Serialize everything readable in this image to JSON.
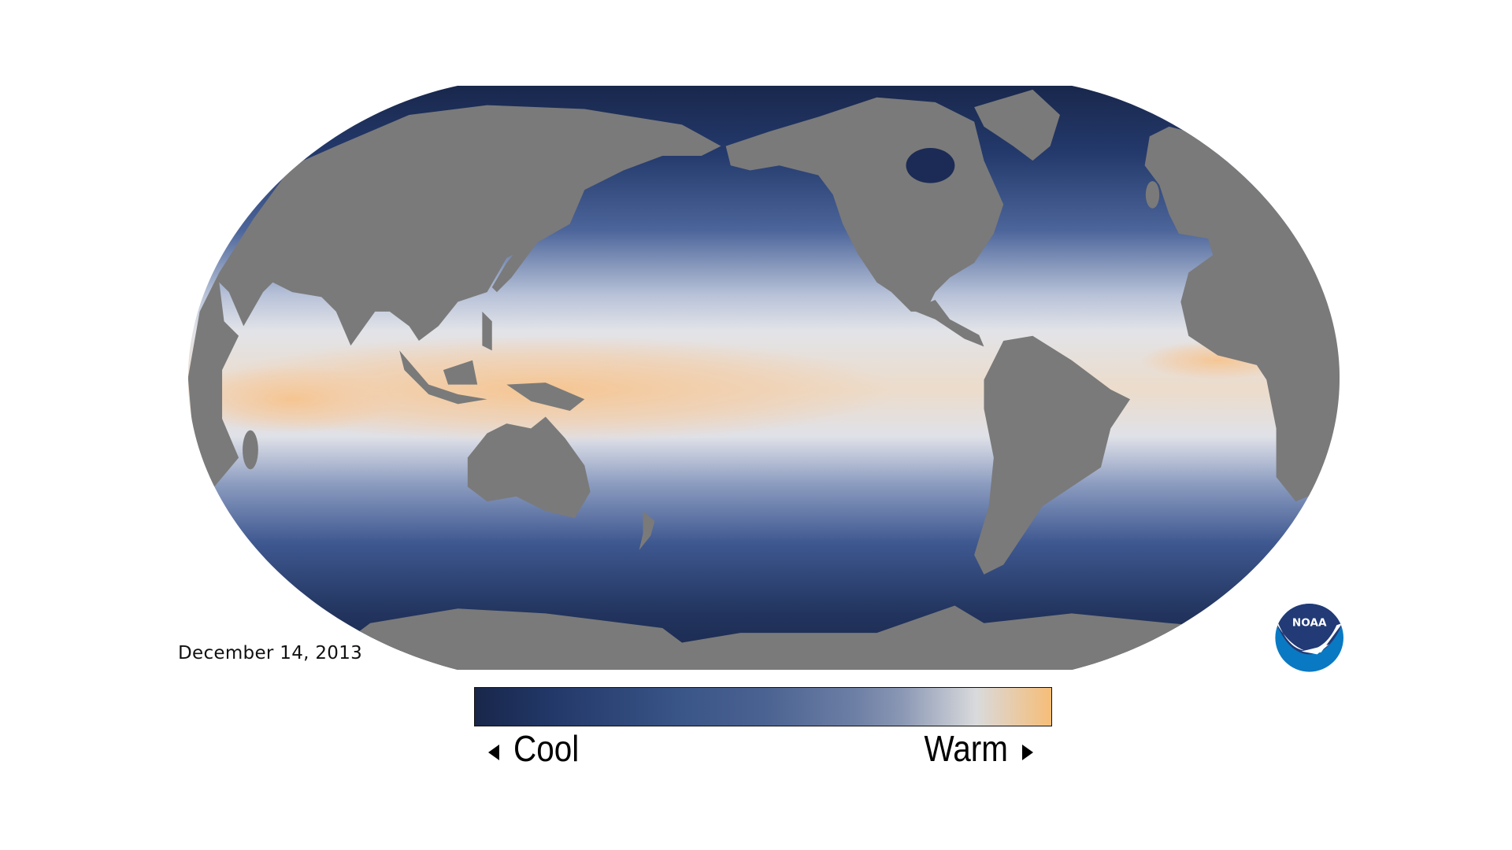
{
  "title_date": "December 14, 2013",
  "legend": {
    "low_label": "Cool",
    "high_label": "Warm",
    "colors": [
      "#18264a",
      "#23396a",
      "#3a5588",
      "#4a6291",
      "#6d7fa5",
      "#8a97b4",
      "#d9dadc",
      "#f6bd78"
    ]
  },
  "map": {
    "land_color": "#7a7a7a",
    "projection": "Robinson, Pacific-centered",
    "ocean_colors": {
      "polar": "#18264a",
      "mid": "#3c5890",
      "subtropic": "#dfe2ea",
      "tropic": "#f5cda0"
    }
  },
  "logo": {
    "text": "NOAA",
    "dark": "#223a75",
    "light": "#0a79c3"
  }
}
